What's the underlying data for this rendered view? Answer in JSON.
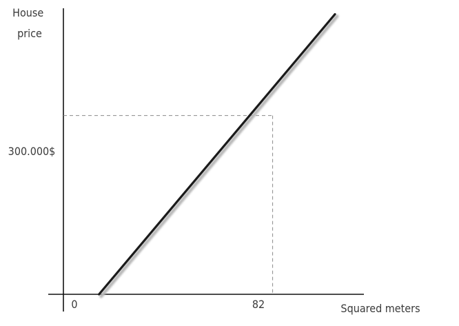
{
  "chart_data": {
    "type": "line",
    "ylabel_lines": [
      "House",
      "price"
    ],
    "xlabel": "Squared meters",
    "origin_label": "0",
    "x_tick_label": "82",
    "y_tick_label": "300.000$",
    "x_marker": 82,
    "y_marker": 300000,
    "series": [
      {
        "x": [
          4,
          110
        ],
        "y": [
          0,
          470000
        ]
      }
    ],
    "xlim": [
      -12,
      123
    ],
    "ylim": [
      0,
      480000
    ],
    "grid": false,
    "colors": {
      "axis": "#111111",
      "line": "#1a1a1a",
      "line_shadow": "#b8b8b8",
      "guide": "#8a8a8a",
      "text": "#3a3a3a"
    }
  }
}
